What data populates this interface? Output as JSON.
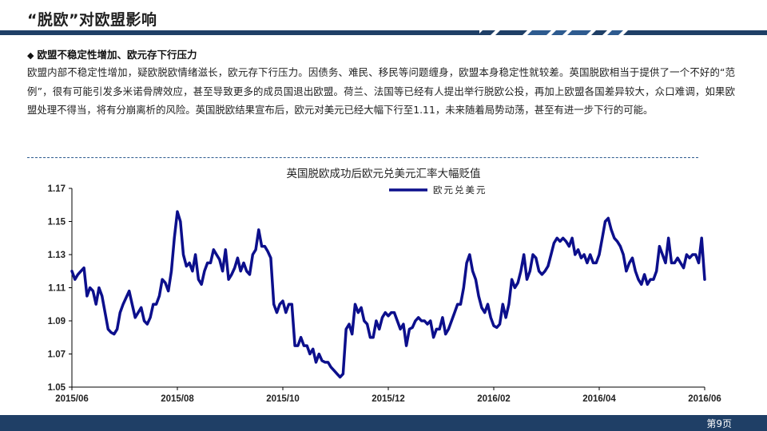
{
  "slide": {
    "title": "“脱欧”对欧盟影响",
    "section_heading": "欧盟不稳定性增加、欧元存下行压力",
    "bullet": "◆",
    "body": "欧盟内部不稳定性增加，疑欧脱欧情绪滋长，欧元存下行压力。因债务、难民、移民等问题缠身，欧盟本身稳定性就较差。英国脱欧相当于提供了一个不好的“范例”，很有可能引发多米诺骨牌效应，甚至导致更多的成员国退出欧盟。荷兰、法国等已经有人提出举行脱欧公投，再加上欧盟各国差异较大，众口难调，如果欧盟处理不得当，将有分崩离析的风险。英国脱欧结果宣布后，欧元对美元已经大幅下行至1.11，未来随着局势动荡，甚至有进一步下行的可能。",
    "page_number": "第9页"
  },
  "colors": {
    "accent_dark": "#1f3f66",
    "accent_mid": "#2e5b8f",
    "series": "#0c0f8c"
  },
  "chart_data": {
    "type": "line",
    "title": "英国脱欧成功后欧元兑美元汇率大幅贬值",
    "xlabel": "",
    "ylabel": "",
    "x_ticks": [
      "2015/06",
      "2015/08",
      "2015/10",
      "2015/12",
      "2016/02",
      "2016/04",
      "2016/06"
    ],
    "y_ticks": [
      "1.05",
      "1.07",
      "1.09",
      "1.11",
      "1.13",
      "1.15",
      "1.17"
    ],
    "ylim": [
      1.05,
      1.17
    ],
    "grid": false,
    "legend_position": "top-left",
    "series": [
      {
        "name": "欧元兑美元",
        "values": [
          1.12,
          1.115,
          1.118,
          1.12,
          1.122,
          1.105,
          1.11,
          1.108,
          1.1,
          1.11,
          1.105,
          1.095,
          1.085,
          1.083,
          1.082,
          1.085,
          1.095,
          1.1,
          1.104,
          1.108,
          1.1,
          1.092,
          1.095,
          1.098,
          1.09,
          1.088,
          1.092,
          1.1,
          1.1,
          1.105,
          1.115,
          1.113,
          1.108,
          1.12,
          1.14,
          1.156,
          1.15,
          1.13,
          1.123,
          1.125,
          1.12,
          1.13,
          1.115,
          1.112,
          1.12,
          1.125,
          1.125,
          1.133,
          1.13,
          1.127,
          1.12,
          1.133,
          1.115,
          1.118,
          1.122,
          1.128,
          1.12,
          1.125,
          1.12,
          1.118,
          1.13,
          1.133,
          1.145,
          1.135,
          1.135,
          1.132,
          1.128,
          1.1,
          1.095,
          1.1,
          1.102,
          1.095,
          1.1,
          1.1,
          1.075,
          1.075,
          1.08,
          1.075,
          1.075,
          1.07,
          1.073,
          1.065,
          1.07,
          1.066,
          1.065,
          1.065,
          1.062,
          1.06,
          1.058,
          1.056,
          1.058,
          1.085,
          1.088,
          1.082,
          1.1,
          1.095,
          1.098,
          1.09,
          1.088,
          1.08,
          1.08,
          1.09,
          1.085,
          1.092,
          1.095,
          1.093,
          1.095,
          1.095,
          1.09,
          1.085,
          1.088,
          1.075,
          1.085,
          1.086,
          1.09,
          1.092,
          1.09,
          1.09,
          1.088,
          1.09,
          1.08,
          1.085,
          1.085,
          1.092,
          1.082,
          1.085,
          1.09,
          1.095,
          1.1,
          1.1,
          1.11,
          1.125,
          1.13,
          1.12,
          1.115,
          1.105,
          1.098,
          1.095,
          1.1,
          1.092,
          1.087,
          1.086,
          1.088,
          1.1,
          1.092,
          1.1,
          1.115,
          1.11,
          1.113,
          1.12,
          1.13,
          1.115,
          1.12,
          1.13,
          1.128,
          1.12,
          1.118,
          1.12,
          1.123,
          1.13,
          1.137,
          1.14,
          1.138,
          1.14,
          1.138,
          1.135,
          1.14,
          1.13,
          1.133,
          1.128,
          1.13,
          1.125,
          1.13,
          1.125,
          1.125,
          1.13,
          1.14,
          1.15,
          1.152,
          1.145,
          1.14,
          1.138,
          1.135,
          1.13,
          1.12,
          1.125,
          1.128,
          1.12,
          1.115,
          1.112,
          1.118,
          1.112,
          1.115,
          1.115,
          1.12,
          1.135,
          1.13,
          1.125,
          1.14,
          1.125,
          1.125,
          1.128,
          1.125,
          1.122,
          1.13,
          1.128,
          1.13,
          1.13,
          1.125,
          1.14,
          1.115
        ]
      }
    ]
  }
}
